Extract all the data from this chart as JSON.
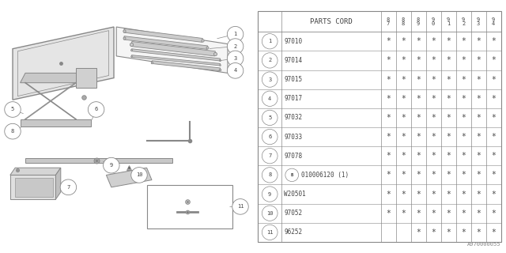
{
  "footer": "A970000055",
  "table_header": "PARTS CORD",
  "year_cols": [
    "8\n7",
    "8\n8",
    "8\n9",
    "9\n0",
    "9\n1",
    "9\n2",
    "9\n3",
    "9\n4"
  ],
  "rows": [
    {
      "num": 1,
      "part": "97010",
      "stars": [
        1,
        1,
        1,
        1,
        1,
        1,
        1,
        1
      ]
    },
    {
      "num": 2,
      "part": "97014",
      "stars": [
        1,
        1,
        1,
        1,
        1,
        1,
        1,
        1
      ]
    },
    {
      "num": 3,
      "part": "97015",
      "stars": [
        1,
        1,
        1,
        1,
        1,
        1,
        1,
        1
      ]
    },
    {
      "num": 4,
      "part": "97017",
      "stars": [
        1,
        1,
        1,
        1,
        1,
        1,
        1,
        1
      ]
    },
    {
      "num": 5,
      "part": "97032",
      "stars": [
        1,
        1,
        1,
        1,
        1,
        1,
        1,
        1
      ]
    },
    {
      "num": 6,
      "part": "97033",
      "stars": [
        1,
        1,
        1,
        1,
        1,
        1,
        1,
        1
      ]
    },
    {
      "num": 7,
      "part": "97078",
      "stars": [
        1,
        1,
        1,
        1,
        1,
        1,
        1,
        1
      ]
    },
    {
      "num": 8,
      "part": "010006120 (1)",
      "stars": [
        1,
        1,
        1,
        1,
        1,
        1,
        1,
        1
      ],
      "b_marker": true
    },
    {
      "num": 9,
      "part": "W20501",
      "stars": [
        1,
        1,
        1,
        1,
        1,
        1,
        1,
        1
      ]
    },
    {
      "num": 10,
      "part": "97052",
      "stars": [
        1,
        1,
        1,
        1,
        1,
        1,
        1,
        1
      ]
    },
    {
      "num": 11,
      "part": "96252",
      "stars": [
        0,
        0,
        1,
        1,
        1,
        1,
        1,
        1
      ]
    }
  ],
  "bg_color": "#ffffff",
  "line_color": "#888888",
  "text_color": "#444444"
}
